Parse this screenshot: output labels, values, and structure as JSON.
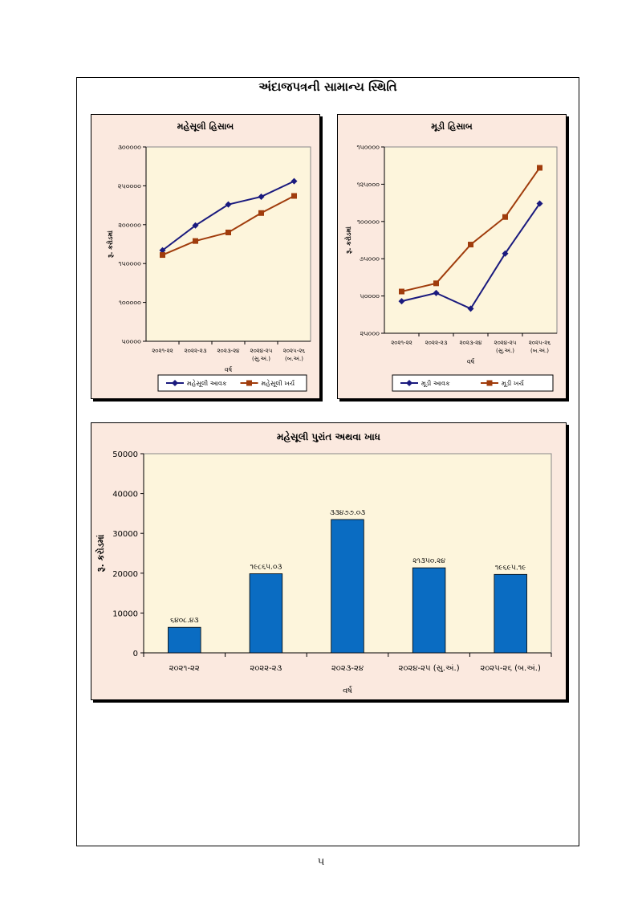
{
  "page": {
    "title": "અંદાજપત્રની સામાન્ય સ્થિતિ",
    "page_number": "૫"
  },
  "colors": {
    "plot_bg": "#fdf5dc",
    "panel_bg": "#fbe9df",
    "series_a": "#1a1a7e",
    "series_b": "#a03c0c",
    "bar": "#0a6cc2"
  },
  "chart_data": [
    {
      "id": "revenue",
      "type": "line",
      "title": "મહેસૂલી હિસાબ",
      "xlabel": "વર્ષ",
      "ylabel": "રૂ. કરોડમાં",
      "categories": [
        [
          "૨૦૨૧-૨૨"
        ],
        [
          "૨૦૨૨-૨૩"
        ],
        [
          "૨૦૨૩-૨૪"
        ],
        [
          "૨૦૨૪-૨૫",
          "(સુ.અં.)"
        ],
        [
          "૨૦૨૫-૨૬",
          "(બ.અં.)"
        ]
      ],
      "ylim": [
        50000,
        300000
      ],
      "yticks": [
        50000,
        100000,
        150000,
        200000,
        250000,
        300000
      ],
      "ytick_labels": [
        "૫૦૦૦૦",
        "૧૦૦૦૦૦",
        "૧૫૦૦૦૦",
        "૨૦૦૦૦૦",
        "૨૫૦૦૦૦",
        "૩૦૦૦૦૦"
      ],
      "grid": false,
      "legend": "bottom",
      "series": [
        {
          "name": "મહેસૂલી આવક",
          "marker": "diamond",
          "color": "#1a1a7e",
          "values": [
            167000,
            199000,
            226000,
            236000,
            256000
          ]
        },
        {
          "name": "મહેસૂલી ખર્ચ",
          "marker": "square",
          "color": "#a03c0c",
          "values": [
            161000,
            179000,
            190000,
            215000,
            237000
          ]
        }
      ]
    },
    {
      "id": "capital",
      "type": "line",
      "title": "મૂડી હિસાબ",
      "xlabel": "વર્ષ",
      "ylabel": "રૂ. કરોડમાં",
      "categories": [
        [
          "૨૦૨૧-૨૨"
        ],
        [
          "૨૦૨૨-૨૩"
        ],
        [
          "૨૦૨૩-૨૪"
        ],
        [
          "૨૦૨૪-૨૫",
          "(સુ.અં.)"
        ],
        [
          "૨૦૨૫-૨૬",
          "(બ.અં.)"
        ]
      ],
      "ylim": [
        25000,
        150000
      ],
      "yticks": [
        25000,
        50000,
        75000,
        100000,
        125000,
        150000
      ],
      "ytick_labels": [
        "૨૫૦૦૦",
        "૫૦૦૦૦",
        "૭૫૦૦૦",
        "૧૦૦૦૦૦",
        "૧૨૫૦૦૦",
        "૧૫૦૦૦૦"
      ],
      "grid": false,
      "legend": "bottom",
      "series": [
        {
          "name": "મૂડી આવક",
          "marker": "diamond",
          "color": "#1a1a7e",
          "values": [
            46500,
            52000,
            41500,
            78500,
            112000
          ]
        },
        {
          "name": "મૂડી ખર્ચ",
          "marker": "square",
          "color": "#a03c0c",
          "values": [
            53000,
            58500,
            84500,
            103000,
            136000
          ]
        }
      ]
    },
    {
      "id": "surplus",
      "type": "bar",
      "title": "મહેસૂલી પુરાંત અથવા ખાધ",
      "xlabel": "વર્ષ",
      "ylabel": "રૂ. કરોડમાં",
      "categories": [
        "૨૦૨૧-૨૨",
        "૨૦૨૨-૨૩",
        "૨૦૨૩-૨૪",
        "૨૦૨૪-૨૫ (સુ.અં.)",
        "૨૦૨૫-૨૬ (બ.અં.)"
      ],
      "values": [
        6408.43,
        19865.03,
        33477.03,
        21350.24,
        19695.19
      ],
      "data_labels": [
        "૬૪૦૮.૪૩",
        "૧૯૮૬૫.૦૩",
        "૩૩૪૭૭.૦૩",
        "૨૧૩૫૦.૨૪",
        "૧૯૬૯૫.૧૯"
      ],
      "ylim": [
        0,
        50000
      ],
      "yticks": [
        0,
        10000,
        20000,
        30000,
        40000,
        50000
      ],
      "ytick_labels": [
        "0",
        "10000",
        "20000",
        "30000",
        "40000",
        "50000"
      ],
      "grid": false,
      "color": "#0a6cc2"
    }
  ]
}
